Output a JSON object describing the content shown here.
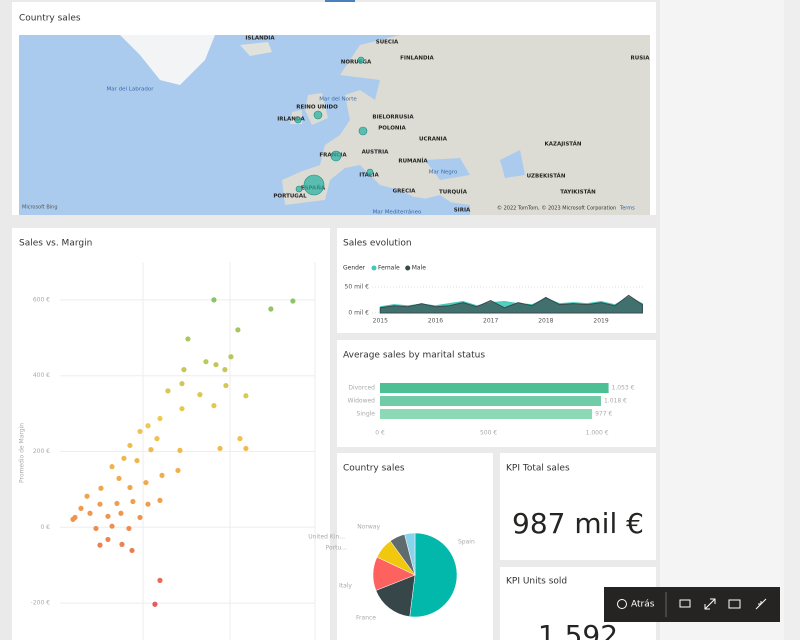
{
  "map_tile": {
    "title": "Country sales",
    "labels": [
      "ISLANDIA",
      "SUECIA",
      "FINLANDIA",
      "NORUEGA",
      "RUSIA",
      "Mar del Labrador",
      "REINO UNIDO",
      "Mar del Norte",
      "IRLANDA",
      "BIELORRUSIA",
      "POLONIA",
      "UCRANIA",
      "KAZAJISTÁN",
      "FRANCIA",
      "AUSTRIA",
      "RUMANÍA",
      "Mar Negro",
      "UZBEKISTÁN",
      "TAYIKISTÁN",
      "ITALIA",
      "GRECIA",
      "TURQUÍA",
      "ESPAÑA",
      "PORTUGAL",
      "Mar Mediterráneo",
      "SIRIA"
    ],
    "bubbles": [
      10,
      5,
      4,
      3,
      4,
      3,
      3,
      3
    ],
    "logo": "Microsoft Bing",
    "attribution": "© 2022 TomTom, © 2023 Microsoft Corporation",
    "terms": "Terms"
  },
  "scatter": {
    "title": "Sales vs. Margin",
    "y_label": "Promedio de Margin",
    "ylim": [
      -300,
      700
    ],
    "xlim": [
      0,
      3000
    ],
    "yticks": [
      {
        "value": 600,
        "label": "600 €"
      },
      {
        "value": 400,
        "label": "400 €"
      },
      {
        "value": 200,
        "label": "200 €"
      },
      {
        "value": 0,
        "label": "0 €"
      },
      {
        "value": -200,
        "label": "-200 €"
      }
    ],
    "x": [
      1811,
      2740,
      2481,
      2093,
      1505,
      2011,
      1717,
      1835,
      1458,
      1952,
      2187,
      1435,
      1270,
      1811,
      1646,
      1435,
      1176,
      1035,
      1141,
      941,
      823,
      1070,
      752,
      906,
      612,
      1388,
      1200,
      1011,
      823,
      694,
      482,
      318,
      470,
      670,
      858,
      1035,
      1176,
      717,
      564,
      353,
      176,
      247,
      423,
      612,
      811,
      941,
      564,
      729,
      470,
      847,
      1176,
      1117,
      2117,
      2187,
      1882,
      1411,
      153,
      1940
    ],
    "y": [
      600,
      597,
      576,
      521,
      497,
      450,
      437,
      429,
      416,
      374,
      347,
      379,
      360,
      321,
      350,
      313,
      287,
      268,
      234,
      253,
      216,
      205,
      182,
      176,
      160,
      150,
      137,
      118,
      105,
      129,
      103,
      82,
      61,
      63,
      68,
      61,
      71,
      37,
      29,
      37,
      26,
      50,
      -3,
      3,
      -3,
      26,
      -32,
      -45,
      -47,
      -61,
      -140,
      -203,
      234,
      208,
      208,
      203,
      21,
      416
    ]
  },
  "sales_evolution": {
    "title": "Sales evolution",
    "legend_title": "Gender",
    "xlim": [
      2014.85,
      2019.76
    ],
    "xticks": [
      2015,
      2016,
      2017,
      2018,
      2019
    ],
    "ylim": [
      0,
      60
    ],
    "yticks": [
      {
        "value": 50,
        "label": "50 mil €"
      },
      {
        "value": 0,
        "label": "0 mil €"
      }
    ],
    "x": [
      2015,
      2015.25,
      2015.5,
      2015.75,
      2016,
      2016.25,
      2016.5,
      2016.75,
      2017,
      2017.25,
      2017.5,
      2017.75,
      2018,
      2018.25,
      2018.5,
      2018.75,
      2019,
      2019.25,
      2019.5,
      2019.75
    ],
    "series": [
      {
        "name": "Female",
        "color": "#40c9b9",
        "values": [
          12,
          16,
          14,
          17,
          14,
          18,
          22,
          14,
          20,
          22,
          18,
          16,
          28,
          18,
          20,
          18,
          22,
          16,
          30,
          18
        ]
      },
      {
        "name": "Male",
        "color": "#3a4a4c",
        "values": [
          10,
          14,
          12,
          18,
          12,
          14,
          20,
          12,
          24,
          10,
          20,
          14,
          30,
          16,
          18,
          16,
          20,
          14,
          34,
          16
        ]
      }
    ]
  },
  "marital": {
    "title": "Average sales by marital status",
    "categories": [
      "Divorced",
      "Widowed",
      "Single"
    ],
    "values": [
      1053,
      1018,
      977
    ],
    "value_labels": [
      "1.053 €",
      "1.018 €",
      "977 €"
    ],
    "colors": [
      "#4dbf94",
      "#6fcca6",
      "#8dd9b6"
    ],
    "xlim": [
      0,
      1230
    ],
    "xticks": [
      {
        "value": 0,
        "label": "0 €"
      },
      {
        "value": 500,
        "label": "500 €"
      },
      {
        "value": 1000,
        "label": "1.000 €"
      }
    ]
  },
  "pie": {
    "title": "Country sales",
    "categories": [
      "Spain",
      "France",
      "Italy",
      "Portu...",
      "United Kin...",
      "Norway"
    ],
    "values": [
      52,
      17,
      13,
      8,
      6,
      4
    ],
    "colors": [
      "#01b8aa",
      "#374649",
      "#fd625e",
      "#f2c80f",
      "#5f6b6d",
      "#8ad4eb"
    ]
  },
  "kpi_sales": {
    "title": "KPI Total sales",
    "value": "987 mil €"
  },
  "kpi_units": {
    "title": "KPI Units sold",
    "value": "1.592"
  },
  "toolbar": {
    "back": "Atrás"
  }
}
